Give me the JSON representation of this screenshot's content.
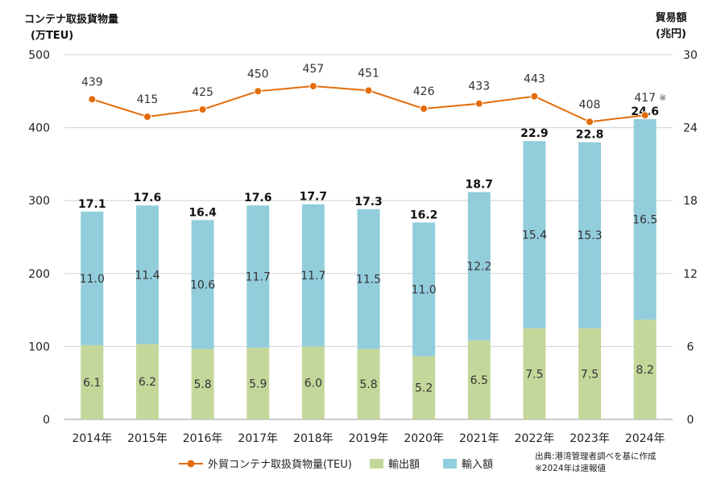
{
  "chart_data": {
    "type": "bar",
    "left_axis": {
      "title": "コンテナ取扱貨物量",
      "unit": "(万TEU)",
      "ylim": [
        0,
        500
      ],
      "ticks": [
        0,
        100,
        200,
        300,
        400,
        500
      ]
    },
    "right_axis": {
      "title": "貿易額",
      "unit": "(兆円)",
      "ylim": [
        0,
        30
      ],
      "ticks": [
        0,
        6,
        12,
        18,
        24,
        30
      ]
    },
    "categories": [
      "2014年",
      "2015年",
      "2016年",
      "2017年",
      "2018年",
      "2019年",
      "2020年",
      "2021年",
      "2022年",
      "2023年",
      "2024年"
    ],
    "series": [
      {
        "name": "輸出額",
        "axis": "right",
        "kind": "bar",
        "color": "#c4d79b",
        "values": [
          6.1,
          6.2,
          5.8,
          5.9,
          6.0,
          5.8,
          5.2,
          6.5,
          7.5,
          7.5,
          8.2
        ]
      },
      {
        "name": "輸入額",
        "axis": "right",
        "kind": "bar",
        "color": "#92cddc",
        "values": [
          11.0,
          11.4,
          10.6,
          11.7,
          11.7,
          11.5,
          11.0,
          12.2,
          15.4,
          15.3,
          16.5
        ]
      },
      {
        "name": "外貿コンテナ取扱貨物量(TEU)",
        "axis": "left",
        "kind": "line",
        "color": "#e36c09",
        "values": [
          439,
          415,
          425,
          450,
          457,
          451,
          426,
          433,
          443,
          408,
          417
        ]
      }
    ],
    "totals": [
      "17.1",
      "17.6",
      "16.4",
      "17.6",
      "17.7",
      "17.3",
      "16.2",
      "18.7",
      "22.9",
      "22.8",
      "24.6"
    ],
    "line_marks": [
      "",
      "",
      "",
      "",
      "",
      "",
      "",
      "",
      "",
      "",
      "※"
    ],
    "grid": true,
    "legend_position": "bottom"
  },
  "notes": [
    "出典:港湾管理者調べを基に作成",
    "※2024年は速報値"
  ]
}
